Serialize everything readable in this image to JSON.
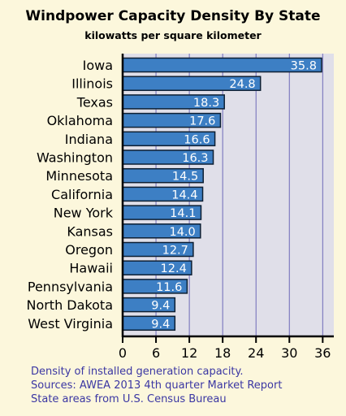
{
  "chart_data": {
    "type": "bar",
    "orientation": "horizontal",
    "title": "Windpower Capacity Density By State",
    "subtitle": "kilowatts per square kilometer",
    "categories": [
      "Iowa",
      "Illinois",
      "Texas",
      "Oklahoma",
      "Indiana",
      "Washington",
      "Minnesota",
      "California",
      "New York",
      "Kansas",
      "Oregon",
      "Hawaii",
      "Pennsylvania",
      "North Dakota",
      "West Virginia"
    ],
    "values": [
      35.8,
      24.8,
      18.3,
      17.6,
      16.6,
      16.3,
      14.5,
      14.4,
      14.1,
      14.0,
      12.7,
      12.4,
      11.6,
      9.4,
      9.4
    ],
    "value_labels": [
      "35.8",
      "24.8",
      "18.3",
      "17.6",
      "16.6",
      "16.3",
      "14.5",
      "14.4",
      "14.1",
      "14.0",
      "12.7",
      "12.4",
      "11.6",
      "9.4",
      "9.4"
    ],
    "xlim": [
      0,
      38
    ],
    "x_ticks": [
      0,
      6,
      12,
      18,
      24,
      30,
      36
    ],
    "grid": true,
    "notes": [
      "Density of installed generation capacity.",
      "Sources: AWEA 2013 4th quarter Market Report",
      "State areas from U.S. Census Bureau"
    ],
    "colors": {
      "bar": "#3d7fc4",
      "bar_border": "#0d1f33",
      "plot_bg": "#e0dfe9",
      "grid": "#6e6ab8",
      "page_bg": "#fcf7dc",
      "note_text": "#3b37a3"
    }
  }
}
